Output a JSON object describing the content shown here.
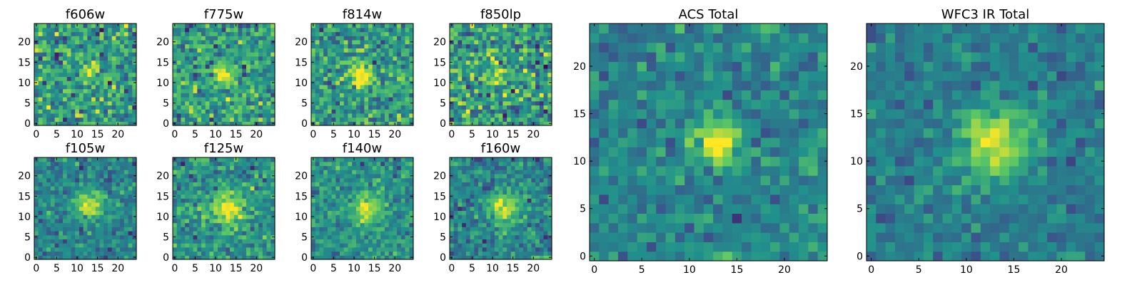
{
  "figure": {
    "background": "#ffffff"
  },
  "colormap": {
    "name": "viridis",
    "stops": [
      "#440154",
      "#3b528b",
      "#21918c",
      "#5ec962",
      "#fde725"
    ]
  },
  "chart_data": [
    {
      "type": "heatmap",
      "title": "f606w",
      "grid": [
        25,
        25
      ],
      "xlim": [
        -0.5,
        24.5
      ],
      "ylim": [
        -0.5,
        24.5
      ],
      "xticks": [
        0,
        5,
        10,
        15,
        20
      ],
      "yticks": [
        0,
        5,
        10,
        15,
        20
      ],
      "source_center": [
        13,
        13
      ],
      "source_sigma": 1.4,
      "source_amp": 0.5,
      "noise": 0.34,
      "base": 0.55,
      "seed": 11
    },
    {
      "type": "heatmap",
      "title": "f775w",
      "grid": [
        25,
        25
      ],
      "xlim": [
        -0.5,
        24.5
      ],
      "ylim": [
        -0.5,
        24.5
      ],
      "xticks": [
        0,
        5,
        10,
        15,
        20
      ],
      "yticks": [
        0,
        5,
        10,
        15,
        20
      ],
      "source_center": [
        12,
        12
      ],
      "source_sigma": 1.6,
      "source_amp": 0.5,
      "noise": 0.3,
      "base": 0.55,
      "seed": 23
    },
    {
      "type": "heatmap",
      "title": "f814w",
      "grid": [
        25,
        25
      ],
      "xlim": [
        -0.5,
        24.5
      ],
      "ylim": [
        -0.5,
        24.5
      ],
      "xticks": [
        0,
        5,
        10,
        15,
        20
      ],
      "yticks": [
        0,
        5,
        10,
        15,
        20
      ],
      "source_center": [
        12,
        12
      ],
      "source_sigma": 1.9,
      "source_amp": 0.5,
      "noise": 0.3,
      "base": 0.55,
      "seed": 37
    },
    {
      "type": "heatmap",
      "title": "f850lp",
      "grid": [
        25,
        25
      ],
      "xlim": [
        -0.5,
        24.5
      ],
      "ylim": [
        -0.5,
        24.5
      ],
      "xticks": [
        0,
        5,
        10,
        15,
        20
      ],
      "yticks": [
        0,
        5,
        10,
        15,
        20
      ],
      "source_center": [
        12,
        12
      ],
      "source_sigma": 1.6,
      "source_amp": 0.4,
      "noise": 0.38,
      "base": 0.55,
      "seed": 41
    },
    {
      "type": "heatmap",
      "title": "f105w",
      "grid": [
        25,
        25
      ],
      "xlim": [
        -0.5,
        24.5
      ],
      "ylim": [
        -0.5,
        24.5
      ],
      "xticks": [
        0,
        5,
        10,
        15,
        20
      ],
      "yticks": [
        0,
        5,
        10,
        15,
        20
      ],
      "source_center": [
        13,
        13
      ],
      "source_sigma": 2.2,
      "source_amp": 0.55,
      "noise": 0.22,
      "base": 0.45,
      "seed": 53
    },
    {
      "type": "heatmap",
      "title": "f125w",
      "grid": [
        25,
        25
      ],
      "xlim": [
        -0.5,
        24.5
      ],
      "ylim": [
        -0.5,
        24.5
      ],
      "xticks": [
        0,
        5,
        10,
        15,
        20
      ],
      "yticks": [
        0,
        5,
        10,
        15,
        20
      ],
      "source_center": [
        13,
        12
      ],
      "source_sigma": 2.6,
      "source_amp": 0.5,
      "noise": 0.24,
      "base": 0.5,
      "seed": 67
    },
    {
      "type": "heatmap",
      "title": "f140w",
      "grid": [
        25,
        25
      ],
      "xlim": [
        -0.5,
        24.5
      ],
      "ylim": [
        -0.5,
        24.5
      ],
      "xticks": [
        0,
        5,
        10,
        15,
        20
      ],
      "yticks": [
        0,
        5,
        10,
        15,
        20
      ],
      "source_center": [
        13,
        12
      ],
      "source_sigma": 2.6,
      "source_amp": 0.45,
      "noise": 0.22,
      "base": 0.5,
      "seed": 71
    },
    {
      "type": "heatmap",
      "title": "f160w",
      "grid": [
        25,
        25
      ],
      "xlim": [
        -0.5,
        24.5
      ],
      "ylim": [
        -0.5,
        24.5
      ],
      "xticks": [
        0,
        5,
        10,
        15,
        20
      ],
      "yticks": [
        0,
        5,
        10,
        15,
        20
      ],
      "source_center": [
        13,
        12
      ],
      "source_sigma": 2.6,
      "source_amp": 0.5,
      "noise": 0.24,
      "base": 0.45,
      "seed": 83
    },
    {
      "type": "heatmap",
      "title": "ACS Total",
      "grid": [
        25,
        25
      ],
      "xlim": [
        -0.5,
        24.5
      ],
      "ylim": [
        -0.5,
        24.5
      ],
      "xticks": [
        0,
        5,
        10,
        15,
        20
      ],
      "yticks": [
        0,
        5,
        10,
        15,
        20
      ],
      "source_center": [
        13,
        12
      ],
      "source_sigma": 1.7,
      "source_amp": 0.55,
      "noise": 0.2,
      "base": 0.45,
      "seed": 97
    },
    {
      "type": "heatmap",
      "title": "WFC3 IR Total",
      "grid": [
        25,
        25
      ],
      "xlim": [
        -0.5,
        24.5
      ],
      "ylim": [
        -0.5,
        24.5
      ],
      "xticks": [
        0,
        5,
        10,
        15,
        20
      ],
      "yticks": [
        0,
        5,
        10,
        15,
        20
      ],
      "source_center": [
        13,
        12
      ],
      "source_sigma": 2.6,
      "source_amp": 0.55,
      "noise": 0.16,
      "base": 0.42,
      "seed": 101
    }
  ]
}
